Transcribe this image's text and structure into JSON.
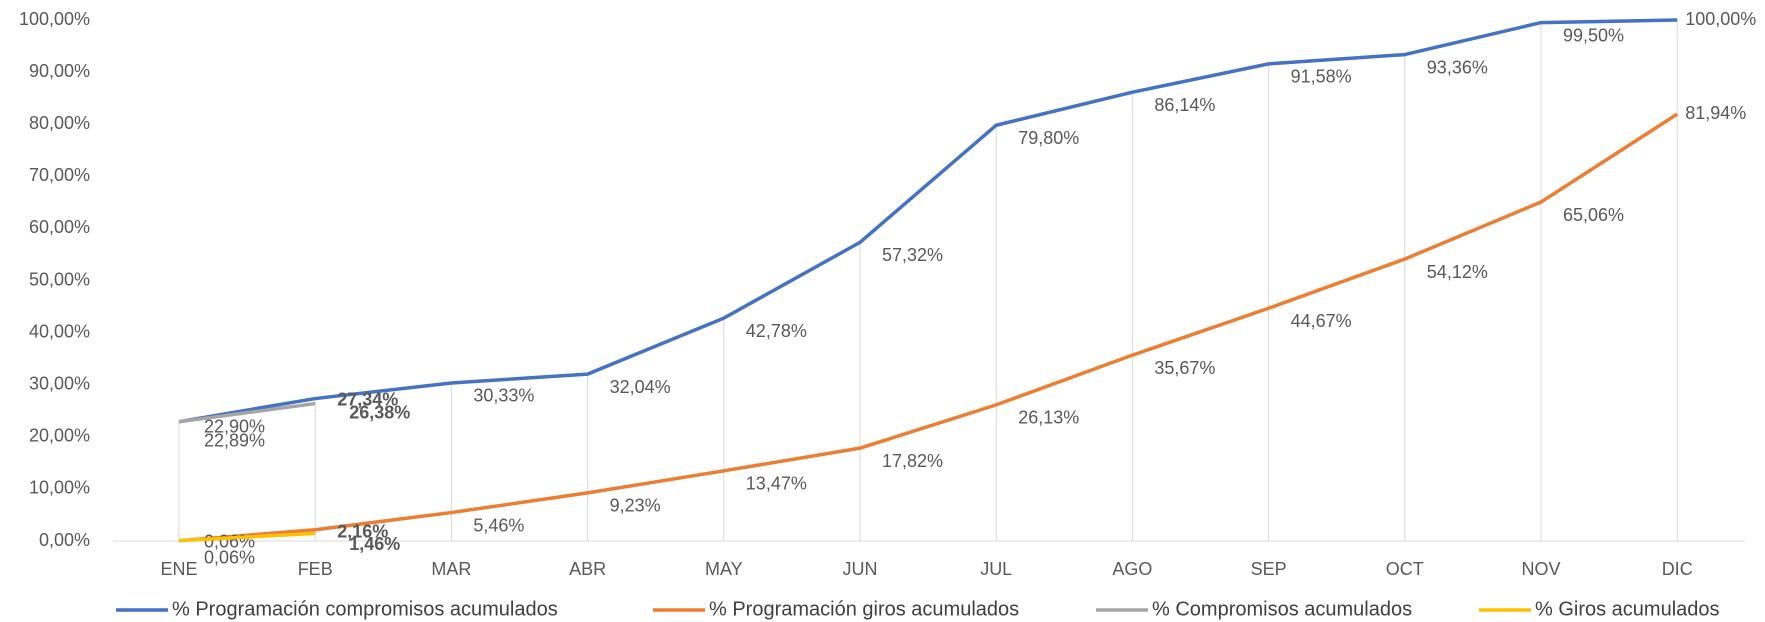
{
  "chart_data": {
    "type": "line",
    "categories": [
      "ENE",
      "FEB",
      "MAR",
      "ABR",
      "MAY",
      "JUN",
      "JUL",
      "AGO",
      "SEP",
      "OCT",
      "NOV",
      "DIC"
    ],
    "ylim": [
      0,
      100
    ],
    "yticks": [
      {
        "value": 0,
        "label": "0,00%"
      },
      {
        "value": 10,
        "label": "10,00%"
      },
      {
        "value": 20,
        "label": "20,00%"
      },
      {
        "value": 30,
        "label": "30,00%"
      },
      {
        "value": 40,
        "label": "40,00%"
      },
      {
        "value": 50,
        "label": "50,00%"
      },
      {
        "value": 60,
        "label": "60,00%"
      },
      {
        "value": 70,
        "label": "70,00%"
      },
      {
        "value": 80,
        "label": "80,00%"
      },
      {
        "value": 90,
        "label": "90,00%"
      },
      {
        "value": 100,
        "label": "100,00%"
      }
    ],
    "legend": "bottom",
    "series": [
      {
        "name": "% Programación compromisos acumulados",
        "color": "#4472c4",
        "values": [
          22.9,
          27.34,
          30.33,
          32.04,
          42.78,
          57.32,
          79.8,
          86.14,
          91.58,
          93.36,
          99.5,
          100.0
        ],
        "value_labels": [
          "22,90%",
          "27,34%",
          "30,33%",
          "32,04%",
          "42,78%",
          "57,32%",
          "79,80%",
          "86,14%",
          "91,58%",
          "93,36%",
          "99,50%",
          "100,00%"
        ]
      },
      {
        "name": "% Programación giros acumulados",
        "color": "#ed7d31",
        "values": [
          0.06,
          2.16,
          5.46,
          9.23,
          13.47,
          17.82,
          26.13,
          35.67,
          44.67,
          54.12,
          65.06,
          81.94
        ],
        "value_labels": [
          "0,06%",
          "2,16%",
          "5,46%",
          "9,23%",
          "13,47%",
          "17,82%",
          "26,13%",
          "35,67%",
          "44,67%",
          "54,12%",
          "65,06%",
          "81,94%"
        ]
      },
      {
        "name": "% Compromisos acumulados",
        "color": "#a5a5a5",
        "values": [
          22.89,
          26.38,
          null,
          null,
          null,
          null,
          null,
          null,
          null,
          null,
          null,
          null
        ],
        "value_labels": [
          "22,89%",
          "26,38%",
          null,
          null,
          null,
          null,
          null,
          null,
          null,
          null,
          null,
          null
        ]
      },
      {
        "name": "% Giros acumulados",
        "color": "#ffc000",
        "values": [
          0.06,
          1.46,
          null,
          null,
          null,
          null,
          null,
          null,
          null,
          null,
          null,
          null
        ],
        "value_labels": [
          "0,06%",
          "1,46%",
          null,
          null,
          null,
          null,
          null,
          null,
          null,
          null,
          null,
          null
        ]
      }
    ]
  }
}
